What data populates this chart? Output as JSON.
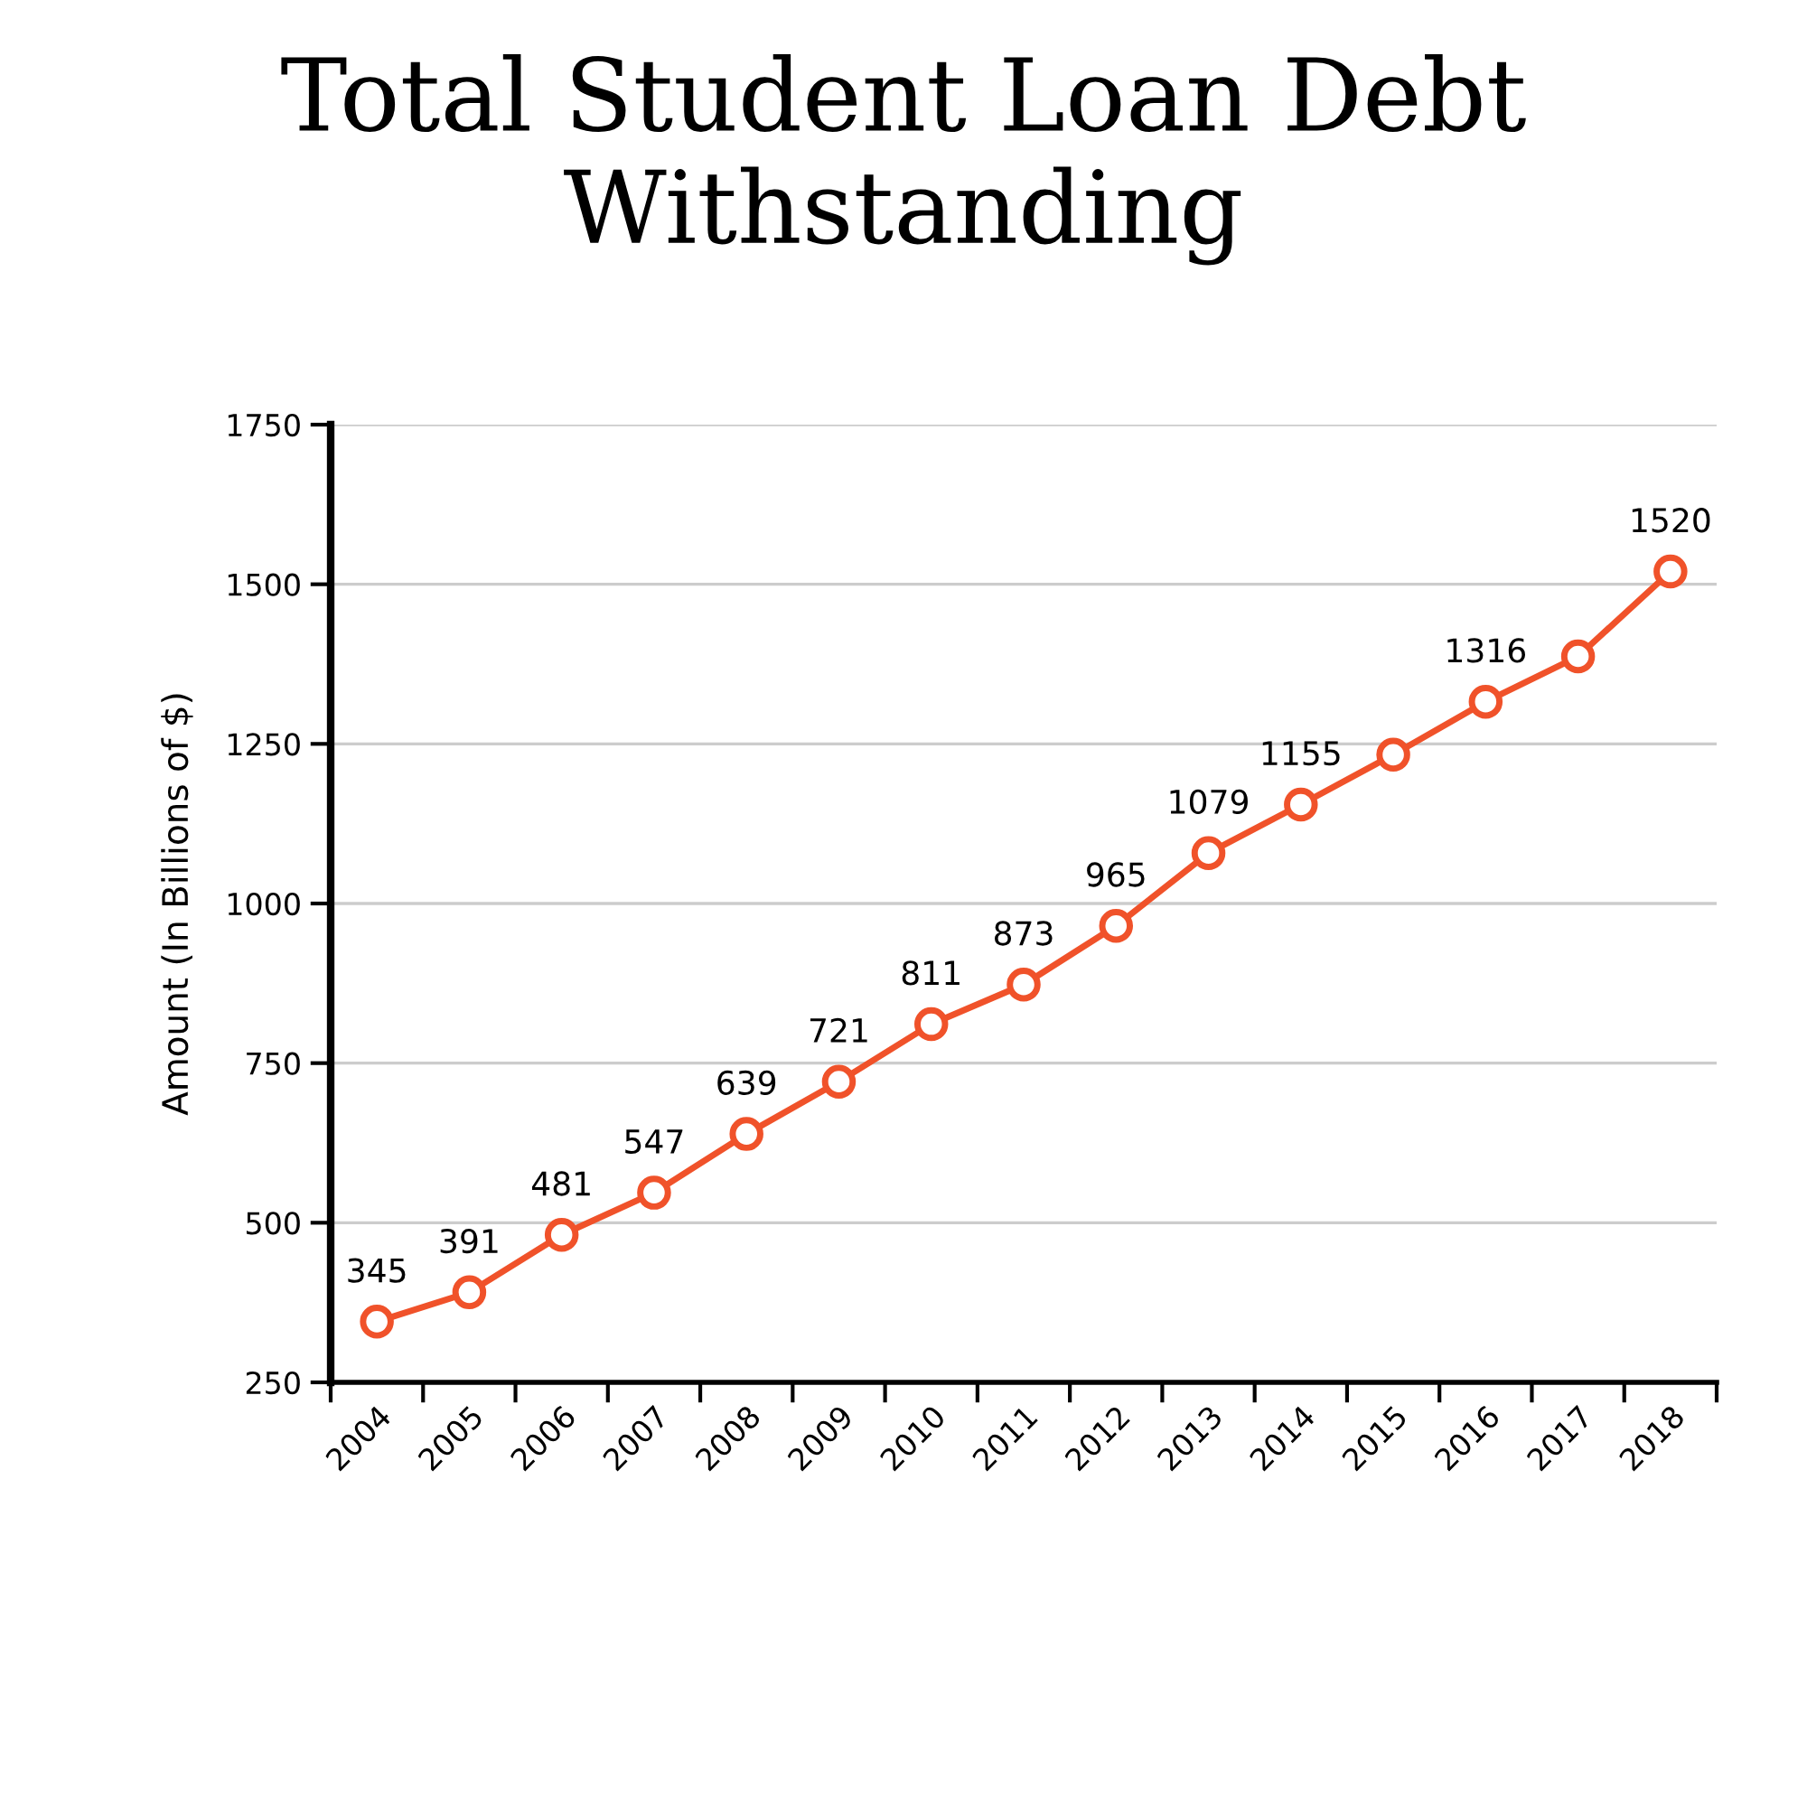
{
  "chart_data": {
    "type": "line",
    "title": "Total Student Loan Debt Withstanding",
    "ylabel": "Amount (In Billions of $)",
    "categories": [
      "2004",
      "2005",
      "2006",
      "2007",
      "2008",
      "2009",
      "2010",
      "2011",
      "2012",
      "2013",
      "2014",
      "2015",
      "2016",
      "2017",
      "2018"
    ],
    "series": [
      {
        "color": "#f0522a",
        "values": [
          345,
          391,
          481,
          547,
          639,
          721,
          811,
          873,
          965,
          1079,
          1155,
          1233,
          1316,
          1387,
          1520
        ],
        "value_labels": [
          "345",
          "391",
          "481",
          "547",
          "639",
          "721",
          "811",
          "873",
          "965",
          "1079",
          "1155",
          null,
          "1316",
          null,
          "1520"
        ]
      }
    ],
    "ylim": [
      250,
      1750
    ],
    "yticks": [
      250,
      500,
      750,
      1000,
      1250,
      1500,
      1750
    ],
    "grid": "y",
    "marker": "circle",
    "line_style": "solid"
  }
}
